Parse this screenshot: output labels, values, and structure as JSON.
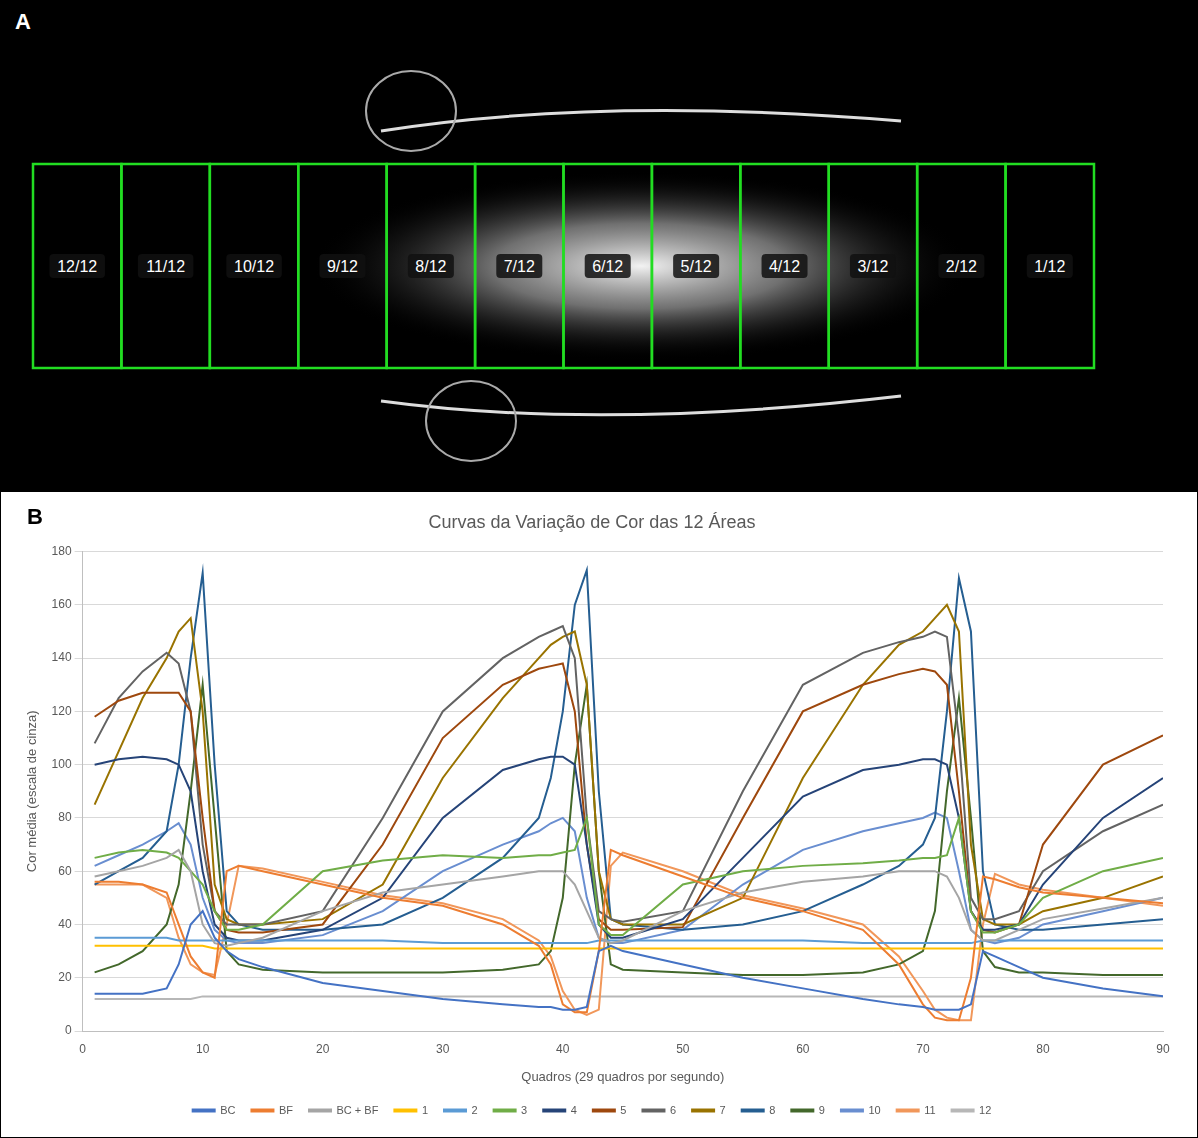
{
  "image_panel": {
    "letter": "A",
    "areas": [
      "12/12",
      "11/12",
      "10/12",
      "9/12",
      "8/12",
      "7/12",
      "6/12",
      "5/12",
      "4/12",
      "3/12",
      "2/12",
      "1/12"
    ]
  },
  "chart_panel": {
    "letter": "B"
  },
  "chart_data": {
    "type": "line",
    "title": "Curvas da Variação de Cor das 12 Áreas",
    "x_label": "Quadros (29 quadros por segundo)",
    "y_label": "Cor média (escala de cinza)",
    "x": [
      1,
      3,
      5,
      7,
      8,
      9,
      10,
      11,
      12,
      13,
      15,
      20,
      25,
      30,
      35,
      38,
      39,
      40,
      41,
      42,
      43,
      44,
      45,
      50,
      55,
      60,
      65,
      68,
      70,
      71,
      72,
      73,
      74,
      75,
      76,
      78,
      80,
      85,
      90
    ],
    "xlim": [
      0,
      90
    ],
    "xticks": [
      0,
      10,
      20,
      30,
      40,
      50,
      60,
      70,
      80,
      90
    ],
    "ylim": [
      0,
      180
    ],
    "yticks": [
      0,
      20,
      40,
      60,
      80,
      100,
      120,
      140,
      160,
      180
    ],
    "grid": true,
    "legend": "bottom",
    "marker": "none",
    "line_style": "solid",
    "series": [
      {
        "name": "BC",
        "color": "#4472c4",
        "values": [
          14,
          14,
          14,
          16,
          25,
          40,
          45,
          35,
          30,
          27,
          24,
          18,
          15,
          12,
          10,
          9,
          9,
          8,
          8,
          9,
          30,
          32,
          30,
          25,
          20,
          16,
          12,
          10,
          9,
          8,
          8,
          8,
          10,
          30,
          28,
          24,
          20,
          16,
          13
        ]
      },
      {
        "name": "BF",
        "color": "#ed7d31",
        "values": [
          56,
          56,
          55,
          52,
          40,
          28,
          22,
          20,
          60,
          62,
          60,
          55,
          50,
          47,
          40,
          32,
          25,
          10,
          7,
          7,
          30,
          68,
          66,
          58,
          50,
          45,
          38,
          25,
          10,
          5,
          4,
          4,
          20,
          58,
          57,
          54,
          52,
          50,
          48
        ]
      },
      {
        "name": "BC + BF",
        "color": "#a5a5a5",
        "values": [
          58,
          60,
          62,
          65,
          68,
          60,
          40,
          33,
          32,
          33,
          35,
          45,
          52,
          55,
          58,
          60,
          60,
          60,
          55,
          45,
          35,
          33,
          34,
          45,
          52,
          56,
          58,
          60,
          60,
          60,
          58,
          50,
          38,
          34,
          34,
          38,
          42,
          46,
          50
        ]
      },
      {
        "name": "1",
        "color": "#ffc000",
        "values": [
          32,
          32,
          32,
          32,
          32,
          32,
          32,
          31,
          31,
          31,
          31,
          31,
          31,
          31,
          31,
          31,
          31,
          31,
          31,
          31,
          31,
          31,
          31,
          31,
          31,
          31,
          31,
          31,
          31,
          31,
          31,
          31,
          31,
          31,
          31,
          31,
          31,
          31,
          31
        ]
      },
      {
        "name": "2",
        "color": "#5b9bd5",
        "values": [
          35,
          35,
          35,
          35,
          34,
          34,
          34,
          34,
          34,
          34,
          34,
          34,
          34,
          33,
          33,
          33,
          33,
          33,
          33,
          33,
          34,
          34,
          34,
          34,
          34,
          34,
          33,
          33,
          33,
          33,
          33,
          33,
          33,
          34,
          34,
          34,
          34,
          34,
          34
        ]
      },
      {
        "name": "3",
        "color": "#70ad47",
        "values": [
          65,
          67,
          68,
          67,
          65,
          60,
          55,
          45,
          38,
          38,
          40,
          60,
          64,
          66,
          65,
          66,
          66,
          67,
          68,
          80,
          40,
          36,
          36,
          55,
          60,
          62,
          63,
          64,
          65,
          65,
          66,
          80,
          45,
          37,
          37,
          40,
          50,
          60,
          65
        ]
      },
      {
        "name": "4",
        "color": "#264478",
        "values": [
          100,
          102,
          103,
          102,
          100,
          90,
          60,
          40,
          35,
          34,
          34,
          38,
          50,
          80,
          98,
          102,
          103,
          103,
          100,
          70,
          40,
          35,
          35,
          42,
          65,
          88,
          98,
          100,
          102,
          102,
          100,
          80,
          45,
          38,
          38,
          40,
          55,
          80,
          95
        ]
      },
      {
        "name": "5",
        "color": "#9e480e",
        "values": [
          118,
          124,
          127,
          127,
          127,
          120,
          80,
          45,
          38,
          37,
          37,
          40,
          70,
          110,
          130,
          136,
          137,
          138,
          120,
          70,
          42,
          38,
          38,
          39,
          80,
          120,
          130,
          134,
          136,
          135,
          130,
          90,
          45,
          38,
          37,
          40,
          70,
          100,
          111
        ]
      },
      {
        "name": "6",
        "color": "#636363",
        "values": [
          108,
          125,
          135,
          142,
          138,
          120,
          70,
          45,
          40,
          40,
          40,
          45,
          80,
          120,
          140,
          148,
          150,
          152,
          140,
          80,
          45,
          42,
          41,
          45,
          90,
          130,
          142,
          146,
          148,
          150,
          148,
          110,
          50,
          42,
          42,
          45,
          60,
          75,
          85
        ]
      },
      {
        "name": "7",
        "color": "#997300",
        "values": [
          85,
          105,
          125,
          140,
          150,
          155,
          120,
          55,
          42,
          40,
          40,
          42,
          55,
          95,
          125,
          140,
          145,
          148,
          150,
          130,
          60,
          42,
          40,
          40,
          50,
          95,
          130,
          145,
          150,
          155,
          160,
          150,
          70,
          42,
          40,
          40,
          45,
          50,
          58
        ]
      },
      {
        "name": "8",
        "color": "#255e91",
        "values": [
          55,
          60,
          65,
          75,
          100,
          140,
          172,
          100,
          45,
          40,
          38,
          38,
          40,
          50,
          65,
          80,
          95,
          120,
          160,
          173,
          90,
          42,
          40,
          38,
          40,
          45,
          55,
          62,
          70,
          80,
          120,
          170,
          150,
          60,
          40,
          38,
          38,
          40,
          42
        ]
      },
      {
        "name": "9",
        "color": "#43682b",
        "values": [
          22,
          25,
          30,
          40,
          55,
          90,
          130,
          80,
          30,
          25,
          23,
          22,
          22,
          22,
          23,
          25,
          30,
          50,
          100,
          130,
          60,
          25,
          23,
          22,
          21,
          21,
          22,
          25,
          30,
          45,
          90,
          125,
          80,
          30,
          24,
          22,
          22,
          21,
          21
        ]
      },
      {
        "name": "10",
        "color": "#698ed0",
        "values": [
          62,
          66,
          70,
          75,
          78,
          70,
          50,
          38,
          34,
          33,
          33,
          36,
          45,
          60,
          70,
          75,
          78,
          80,
          75,
          50,
          35,
          33,
          33,
          38,
          55,
          68,
          75,
          78,
          80,
          82,
          80,
          60,
          38,
          34,
          33,
          35,
          40,
          45,
          50
        ]
      },
      {
        "name": "11",
        "color": "#f1975a",
        "values": [
          55,
          55,
          55,
          50,
          35,
          25,
          22,
          21,
          40,
          62,
          61,
          56,
          51,
          48,
          42,
          34,
          28,
          15,
          8,
          6,
          8,
          62,
          67,
          60,
          51,
          46,
          40,
          28,
          15,
          8,
          5,
          4,
          4,
          40,
          59,
          55,
          53,
          50,
          47
        ]
      },
      {
        "name": "12",
        "color": "#b7b7b7",
        "values": [
          12,
          12,
          12,
          12,
          12,
          12,
          13,
          13,
          13,
          13,
          13,
          13,
          13,
          13,
          13,
          13,
          13,
          13,
          13,
          13,
          13,
          13,
          13,
          13,
          13,
          13,
          13,
          13,
          13,
          13,
          13,
          13,
          13,
          13,
          13,
          13,
          13,
          13,
          13
        ]
      }
    ]
  }
}
